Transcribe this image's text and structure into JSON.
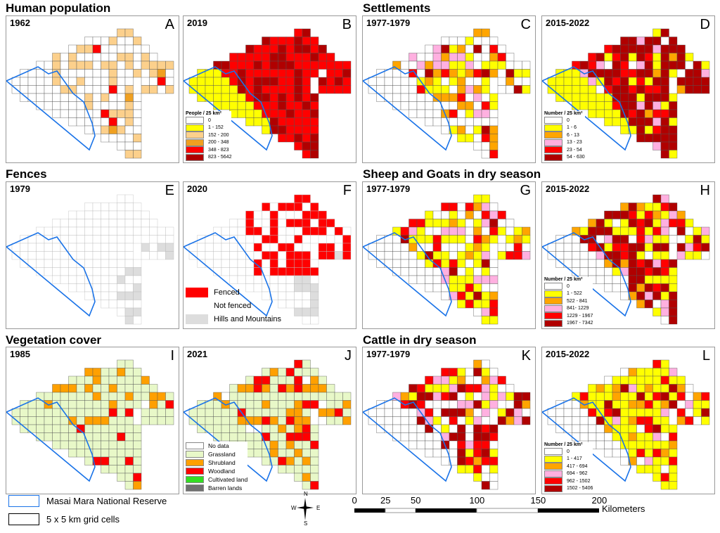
{
  "sections": {
    "human": "Human population",
    "settlements": "Settlements",
    "fences": "Fences",
    "sheep": "Sheep and Goats in dry season",
    "vegetation": "Vegetation cover",
    "cattle": "Cattle in dry season"
  },
  "legends": {
    "people": {
      "title": "People / 25 km²",
      "items": [
        {
          "label": "0",
          "color": "#ffffff"
        },
        {
          "label": "1 - 152",
          "color": "#ffff00"
        },
        {
          "label": "152 - 200",
          "color": "#fcd08c"
        },
        {
          "label": "200  - 348",
          "color": "#f0a020"
        },
        {
          "label": "348 - 823",
          "color": "#ff0000"
        },
        {
          "label": "823 - 5642",
          "color": "#b00000"
        }
      ]
    },
    "settle": {
      "title": "Number / 25 km²",
      "items": [
        {
          "label": "0",
          "color": "#ffffff"
        },
        {
          "label": "1 - 6",
          "color": "#ffff00"
        },
        {
          "label": "6 - 13",
          "color": "#ffa500"
        },
        {
          "label": "13 - 23",
          "color": "#ffb0e0"
        },
        {
          "label": "23 - 54",
          "color": "#ff0000"
        },
        {
          "label": "54 - 630",
          "color": "#b00000"
        }
      ]
    },
    "sheep": {
      "title": "Number / 25 km²",
      "items": [
        {
          "label": "0",
          "color": "#ffffff"
        },
        {
          "label": "1 - 522",
          "color": "#ffff00"
        },
        {
          "label": "522 - 841",
          "color": "#ffa500"
        },
        {
          "label": "841- 1229",
          "color": "#ffb0e0"
        },
        {
          "label": "1229 - 1967",
          "color": "#ff0000"
        },
        {
          "label": "1967 - 7342",
          "color": "#b00000"
        }
      ]
    },
    "cattle": {
      "title": "Number / 25 km²",
      "items": [
        {
          "label": "0",
          "color": "#ffffff"
        },
        {
          "label": "1 - 417",
          "color": "#ffff00"
        },
        {
          "label": "417 - 694",
          "color": "#ffa500"
        },
        {
          "label": "694 - 962",
          "color": "#ffb0e0"
        },
        {
          "label": "962 - 1502",
          "color": "#ff0000"
        },
        {
          "label": "1502 - 5406",
          "color": "#b00000"
        }
      ]
    },
    "fence": {
      "items": [
        {
          "label": "Fenced",
          "color": "#ff0000"
        },
        {
          "label": "Not fenced",
          "color": "#ffffff"
        },
        {
          "label": "Hills and Mountains",
          "color": "#dddddd"
        }
      ]
    },
    "veg": {
      "items": [
        {
          "label": "No data",
          "color": "#ffffff"
        },
        {
          "label": "Grassland",
          "color": "#e8f8c8"
        },
        {
          "label": "Shrubland",
          "color": "#ffa000"
        },
        {
          "label": "Woodland",
          "color": "#ff0000"
        },
        {
          "label": "Cultivated land",
          "color": "#33dd22"
        },
        {
          "label": "Barren lands",
          "color": "#707070"
        }
      ]
    }
  },
  "panels": [
    {
      "id": "A",
      "year": "1962"
    },
    {
      "id": "B",
      "year": "2019"
    },
    {
      "id": "C",
      "year": "1977-1979"
    },
    {
      "id": "D",
      "year": "2015-2022"
    },
    {
      "id": "E",
      "year": "1979"
    },
    {
      "id": "F",
      "year": "2020"
    },
    {
      "id": "G",
      "year": "1977-1979"
    },
    {
      "id": "H",
      "year": "2015-2022"
    },
    {
      "id": "I",
      "year": "1985"
    },
    {
      "id": "J",
      "year": "2021"
    },
    {
      "id": "K",
      "year": "1977-1979"
    },
    {
      "id": "L",
      "year": "2015-2022"
    }
  ],
  "bottom": {
    "reserve": "Masai Mara National Reserve",
    "grid": "5 x 5 km grid cells",
    "reserve_color": "#1a73e8",
    "compass": {
      "n": "N",
      "s": "S",
      "e": "E",
      "w": "W"
    },
    "scale": {
      "ticks": [
        "0",
        "25",
        "50",
        "100",
        "150",
        "200"
      ],
      "unit": "Kilometers"
    }
  }
}
